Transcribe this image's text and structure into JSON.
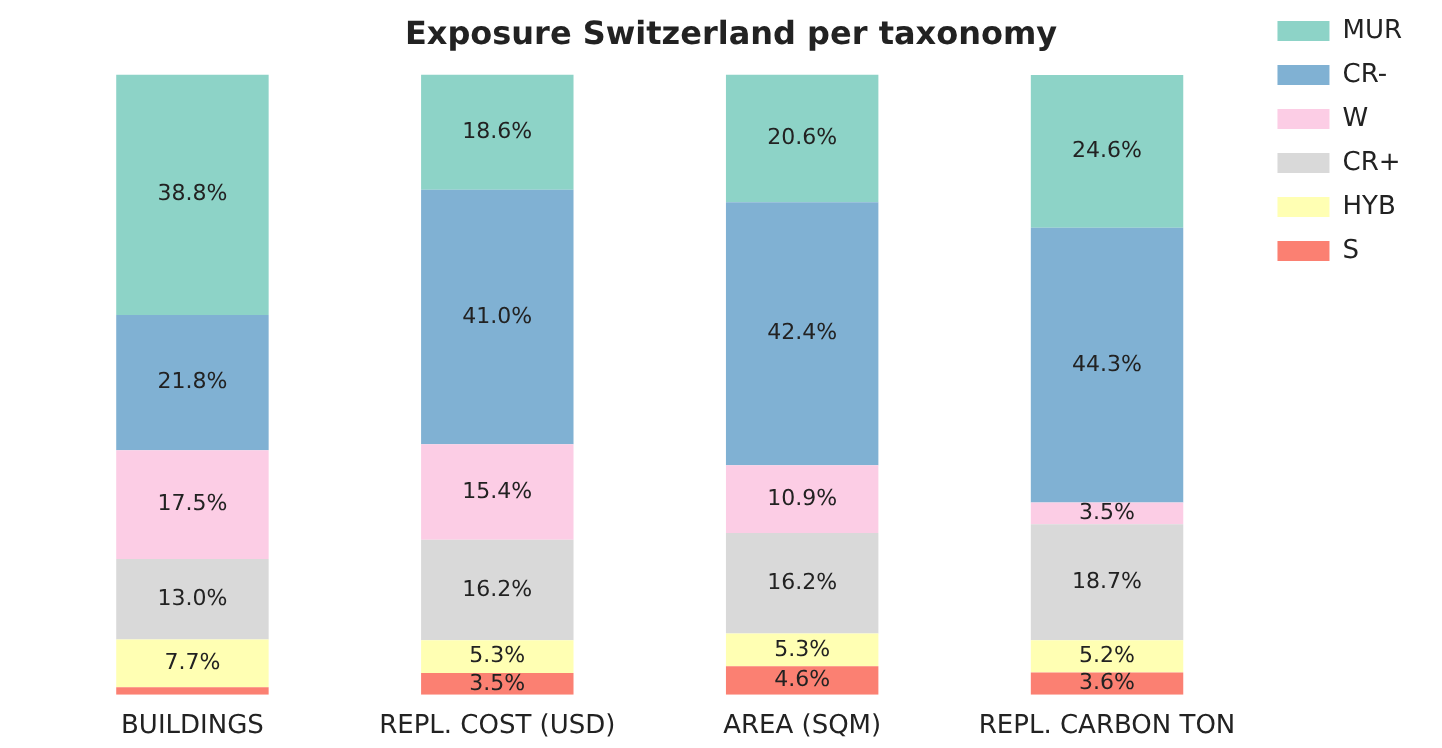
{
  "chart_data": {
    "type": "bar",
    "title": "Exposure Switzerland per taxonomy",
    "stacked": true,
    "legend": "top right",
    "grid": false,
    "tick_labels": "x",
    "categories": [
      "BUILDINGS",
      "REPL. COST (USD)",
      "AREA (SQM)",
      "REPL. CARBON TON"
    ],
    "series": [
      {
        "name": "S",
        "color": "#fb8072",
        "values": [
          1.2,
          3.5,
          4.6,
          3.6
        ],
        "value_labels": [
          null,
          "3.5%",
          "4.6%",
          "3.6%"
        ]
      },
      {
        "name": "HYB",
        "color": "#ffffb3",
        "values": [
          7.7,
          5.3,
          5.3,
          5.2
        ],
        "value_labels": [
          "7.7%",
          "5.3%",
          "5.3%",
          "5.2%"
        ]
      },
      {
        "name": "CR+",
        "color": "#d9d9d9",
        "values": [
          13.0,
          16.2,
          16.2,
          18.7
        ],
        "value_labels": [
          "13.0%",
          "16.2%",
          "16.2%",
          "18.7%"
        ]
      },
      {
        "name": "W",
        "color": "#fccde5",
        "values": [
          17.5,
          15.4,
          10.9,
          3.5
        ],
        "value_labels": [
          "17.5%",
          "15.4%",
          "10.9%",
          "3.5%"
        ]
      },
      {
        "name": "CR-",
        "color": "#80b1d3",
        "values": [
          21.8,
          41.0,
          42.4,
          44.3
        ],
        "value_labels": [
          "21.8%",
          "41.0%",
          "42.4%",
          "44.3%"
        ]
      },
      {
        "name": "MUR",
        "color": "#8dd3c7",
        "values": [
          38.8,
          18.6,
          20.6,
          24.6
        ],
        "value_labels": [
          "38.8%",
          "18.6%",
          "20.6%",
          "24.6%"
        ]
      }
    ]
  }
}
